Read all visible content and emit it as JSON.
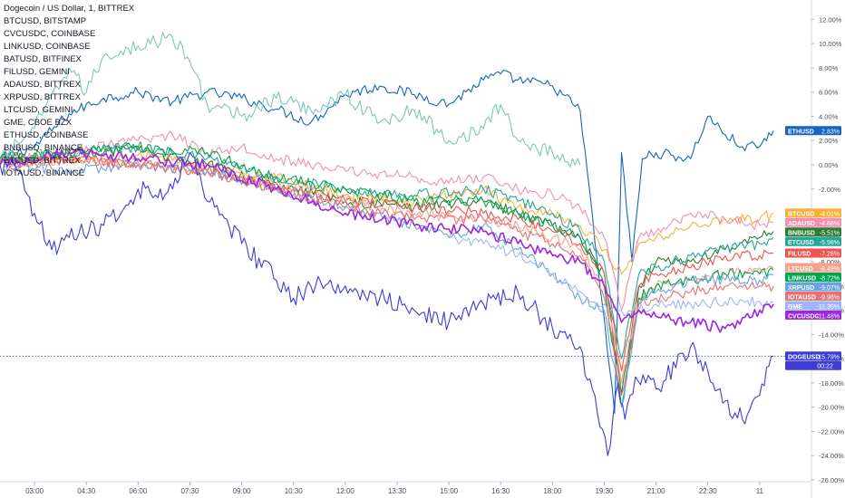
{
  "chart_data": {
    "type": "line",
    "title": "Dogecoin / US Dollar, 1, BITTREX",
    "legend_position": "top-left",
    "grid": false,
    "ylim": [
      -26,
      13
    ],
    "y_ticks": [
      12,
      10,
      8,
      6,
      4,
      2,
      0,
      -2,
      -4,
      -6,
      -8,
      -10,
      -12,
      -14,
      -16,
      -18,
      -20,
      -22,
      -24,
      -26
    ],
    "y_tick_suffix": "%",
    "x_ticks": [
      "03:00",
      "04:30",
      "06:00",
      "07:30",
      "09:00",
      "10:30",
      "12:00",
      "13:30",
      "15:00",
      "16:30",
      "18:00",
      "19:30",
      "21:00",
      "22:30",
      "11"
    ],
    "x_tick_values": [
      1.0,
      2.5,
      4.0,
      5.5,
      7.0,
      8.5,
      10.0,
      11.5,
      13.0,
      14.5,
      16.0,
      17.5,
      19.0,
      20.5,
      22.0
    ],
    "xlim": [
      0,
      23.5
    ],
    "legend_entries": [
      "BTCUSD, BITSTAMP",
      "CVCUSDC, COINBASE",
      "LINKUSD, COINBASE",
      "BATUSD, BITFINEX",
      "FILUSD, GEMINI",
      "ADAUSD, BITTREX",
      "XRPUSD, BITTREX",
      "LTCUSD, GEMINI",
      "GME, CBOE BZX",
      "ETHUSD, COINBASE",
      "BNBUSD, BINANCE",
      "ETCUSD, BITTREX",
      "IOTAUSD, BINANCE"
    ],
    "countdown": "00:22",
    "series": [
      {
        "name": "ETHUSD",
        "color": "#1565c0",
        "last_label": "2.83%",
        "x": [
          0,
          1,
          2,
          3,
          4,
          5,
          6,
          7,
          8,
          9,
          10,
          11,
          12,
          13,
          14,
          14.5,
          15,
          16,
          16.8,
          17.3,
          17.8,
          18.0,
          18.3,
          18.6,
          19,
          20,
          20.5,
          21,
          21.5,
          22,
          22.4
        ],
        "y": [
          0.5,
          1.5,
          4.2,
          5.5,
          6.0,
          5.2,
          6.0,
          5.5,
          4.6,
          3.5,
          5.8,
          6.5,
          5.8,
          5.0,
          7.0,
          7.5,
          7.0,
          6.5,
          4.5,
          -8.0,
          -20.5,
          1.0,
          -8.0,
          0.5,
          1.0,
          0.5,
          4.0,
          2.5,
          1.5,
          1.5,
          2.8
        ]
      },
      {
        "name": "BATUSD",
        "color": "#7fc7b4",
        "last_label": "",
        "x": [
          0,
          1,
          2,
          2.5,
          3,
          4,
          5,
          5.5,
          6,
          7,
          8,
          9,
          10,
          11,
          12,
          13,
          14,
          14.5,
          15,
          16,
          16.8
        ],
        "y": [
          0.5,
          3.0,
          8.0,
          6.0,
          9.0,
          9.8,
          10.5,
          8.5,
          5.0,
          4.0,
          5.5,
          4.5,
          5.8,
          3.5,
          4.5,
          2.0,
          3.0,
          5.0,
          2.0,
          1.0,
          0.0
        ]
      },
      {
        "name": "BTCUSD",
        "color": "#f6b13d",
        "last_label": "-4.01%",
        "x": [
          0,
          2,
          4,
          6,
          8,
          10,
          12,
          13,
          14,
          15,
          16,
          16.8,
          17.5,
          18,
          18.5,
          19,
          20,
          21,
          22,
          22.4
        ],
        "y": [
          0.0,
          0.5,
          0.8,
          0.0,
          -1.0,
          -2.5,
          -3.0,
          -2.5,
          -2.0,
          -3.5,
          -4.0,
          -5.0,
          -7.0,
          -9.0,
          -6.5,
          -6.0,
          -5.0,
          -4.5,
          -4.5,
          -4.0
        ]
      },
      {
        "name": "ADAUSD",
        "color": "#f48fb1",
        "last_label": "-4.68%",
        "x": [
          0,
          2,
          4,
          5,
          6,
          7,
          8,
          10,
          12,
          13,
          14,
          15,
          16,
          16.8,
          17.5,
          18,
          18.5,
          19,
          20,
          21,
          22,
          22.4
        ],
        "y": [
          0.5,
          1.0,
          2.0,
          2.5,
          1.0,
          1.5,
          0.5,
          -0.5,
          -1.0,
          -1.5,
          -1.0,
          -2.0,
          -2.5,
          -3.5,
          -6.0,
          -12.0,
          -6.0,
          -5.5,
          -4.0,
          -4.5,
          -5.0,
          -4.7
        ]
      },
      {
        "name": "BNBUSD",
        "color": "#2e7d32",
        "last_label": "-5.51%",
        "x": [
          0,
          2,
          4,
          6,
          8,
          10,
          12,
          14,
          15,
          16,
          16.8,
          17.5,
          18,
          18.5,
          19,
          20,
          21,
          22,
          22.4
        ],
        "y": [
          0.3,
          1.0,
          1.2,
          0.0,
          -1.5,
          -3.0,
          -3.5,
          -3.0,
          -4.0,
          -5.0,
          -6.0,
          -9.0,
          -19.0,
          -10.0,
          -8.0,
          -8.0,
          -7.0,
          -6.0,
          -5.5
        ]
      },
      {
        "name": "ETCUSD",
        "color": "#26a69a",
        "last_label": "-5.98%",
        "x": [
          0,
          2,
          4,
          6,
          8,
          10,
          12,
          14,
          15,
          16,
          16.8,
          17.5,
          18,
          18.5,
          19,
          20,
          21,
          22,
          22.4
        ],
        "y": [
          0.5,
          1.0,
          1.5,
          0.5,
          -1.0,
          -2.0,
          -2.5,
          -2.0,
          -3.0,
          -4.0,
          -5.5,
          -8.0,
          -16.0,
          -9.0,
          -8.5,
          -7.5,
          -7.0,
          -6.5,
          -6.0
        ]
      },
      {
        "name": "FILUSD",
        "color": "#ef5350",
        "last_label": "-7.28%",
        "x": [
          0,
          2,
          4,
          6,
          8,
          10,
          12,
          14,
          15,
          16,
          16.8,
          17.5,
          18,
          18.5,
          19,
          20,
          21,
          22,
          22.4
        ],
        "y": [
          0.0,
          0.5,
          0.0,
          -0.5,
          -2.0,
          -3.0,
          -3.5,
          -4.0,
          -4.5,
          -5.5,
          -6.5,
          -9.0,
          -17.0,
          -10.0,
          -9.0,
          -8.5,
          -7.5,
          -7.5,
          -7.3
        ]
      },
      {
        "name": "LTCUSD",
        "color": "#f9a08a",
        "last_label": "-8.49%",
        "x": [
          0,
          2,
          4,
          6,
          8,
          10,
          12,
          14,
          15,
          16,
          16.8,
          17.5,
          18,
          18.5,
          19,
          20,
          21,
          22,
          22.4
        ],
        "y": [
          0.2,
          0.5,
          0.0,
          -0.5,
          -1.5,
          -3.0,
          -4.0,
          -4.5,
          -5.0,
          -6.0,
          -7.0,
          -10.0,
          -18.0,
          -11.0,
          -10.0,
          -9.5,
          -9.0,
          -8.5,
          -8.5
        ]
      },
      {
        "name": "LINKUSD",
        "color": "#00a650",
        "last_label": "-8.72%",
        "x": [
          0,
          2,
          4,
          6,
          8,
          10,
          12,
          14,
          15,
          16,
          16.8,
          17.5,
          18,
          18.5,
          19,
          20,
          21,
          22,
          22.4
        ],
        "y": [
          0.5,
          1.0,
          1.5,
          1.0,
          -1.0,
          -2.0,
          -3.0,
          -3.0,
          -4.0,
          -5.0,
          -6.0,
          -10.0,
          -20.0,
          -11.0,
          -10.0,
          -9.5,
          -9.0,
          -9.0,
          -8.7
        ]
      },
      {
        "name": "XRPUSD",
        "color": "#6aa3e0",
        "last_label": "-9.07%",
        "x": [
          0,
          2,
          4,
          6,
          8,
          10,
          12,
          13,
          14,
          15,
          16,
          16.8,
          17.5,
          18,
          18.5,
          19,
          20,
          21,
          22,
          22.4
        ],
        "y": [
          0.0,
          -0.5,
          0.0,
          -0.5,
          -2.0,
          -3.5,
          -5.0,
          -6.0,
          -5.0,
          -7.0,
          -9.0,
          -11.0,
          -12.0,
          -20.0,
          -11.5,
          -10.5,
          -9.5,
          -9.5,
          -9.5,
          -9.1
        ]
      },
      {
        "name": "IOTAUSD",
        "color": "#e57373",
        "last_label": "-9.98%",
        "x": [
          0,
          2,
          4,
          6,
          8,
          10,
          12,
          14,
          15,
          16,
          16.8,
          17.5,
          18,
          18.5,
          19,
          20,
          21,
          22,
          22.4
        ],
        "y": [
          0.0,
          0.3,
          0.2,
          -0.5,
          -2.0,
          -3.5,
          -4.5,
          -4.5,
          -5.5,
          -6.5,
          -7.5,
          -11.0,
          -19.0,
          -11.5,
          -11.0,
          -10.5,
          -10.0,
          -10.0,
          -10.0
        ]
      },
      {
        "name": "GME",
        "color": "#9fb6f5",
        "last_label": "-11.35%",
        "x": [
          13,
          14,
          15,
          16,
          16.8,
          17.5,
          18,
          18.5,
          19,
          20,
          21,
          22,
          22.4
        ],
        "y": [
          -6.0,
          -6.5,
          -7.5,
          -9.0,
          -10.5,
          -11.5,
          -12.0,
          -12.0,
          -11.5,
          -11.5,
          -11.3,
          -11.3,
          -11.35
        ]
      },
      {
        "name": "CVCUSDC",
        "color": "#9c27e0",
        "last_label": "-11.48%",
        "x": [
          0,
          2,
          4,
          6,
          8,
          10,
          12,
          14,
          15,
          16,
          16.8,
          17.5,
          18,
          18.5,
          19,
          20,
          21,
          22,
          22.4
        ],
        "y": [
          0.0,
          1.0,
          0.5,
          0.0,
          -2.0,
          -4.0,
          -5.0,
          -5.5,
          -6.5,
          -7.5,
          -8.0,
          -10.0,
          -13.0,
          -12.0,
          -12.5,
          -13.0,
          -13.5,
          -12.0,
          -11.5
        ]
      },
      {
        "name": "DOGEUSD",
        "color": "#3d3dd4",
        "last_label": "-15.79%",
        "x": [
          0,
          0.5,
          1,
          1.5,
          2,
          3,
          3.5,
          4,
          4.5,
          5,
          5.5,
          6,
          7,
          8,
          8.5,
          9,
          10,
          11,
          12,
          13,
          14,
          15,
          16,
          16.8,
          17.3,
          17.6,
          17.9,
          18.1,
          18.4,
          18.7,
          19,
          20,
          20.5,
          21,
          21.5,
          22,
          22.4
        ],
        "y": [
          0.0,
          -0.5,
          -4.0,
          -7.0,
          -6.0,
          -5.0,
          -4.0,
          -2.0,
          -2.5,
          -2.0,
          1.0,
          -3.0,
          -6.5,
          -9.5,
          -11.0,
          -10.0,
          -10.0,
          -11.0,
          -12.0,
          -13.0,
          -11.5,
          -10.5,
          -13.5,
          -15.0,
          -20.5,
          -24.0,
          -18.0,
          -21.0,
          -17.5,
          -18.0,
          -18.5,
          -15.0,
          -17.0,
          -19.5,
          -21.0,
          -19.0,
          -15.8
        ]
      }
    ]
  }
}
